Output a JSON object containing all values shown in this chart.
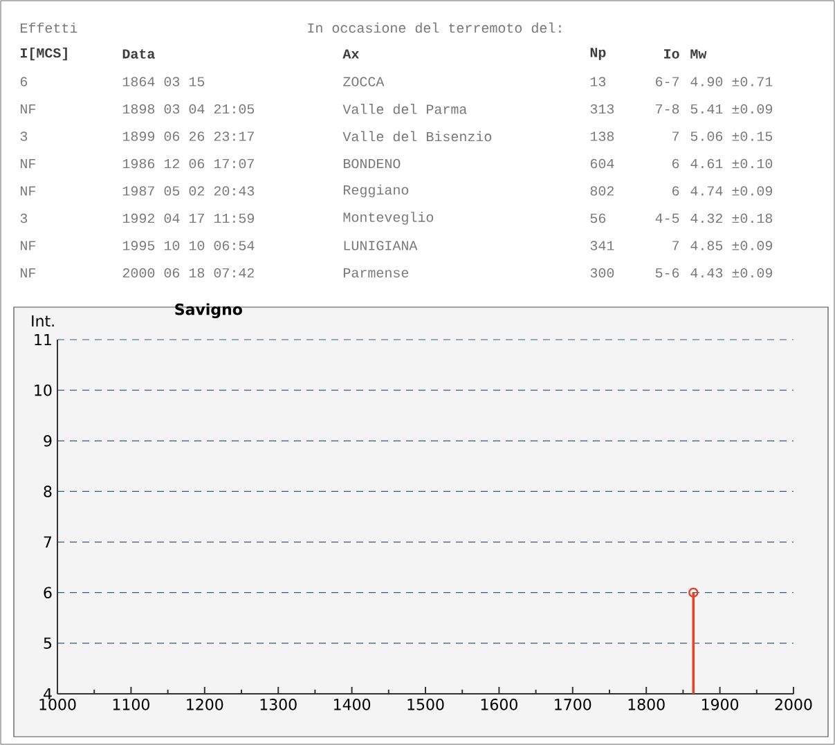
{
  "chart_data": [
    {
      "type": "other",
      "annotations": [
        "Effetti",
        "In occasione del terremoto del:",
        "I[MCS]",
        "Data",
        "Ax",
        "Np",
        "Io",
        "Mw",
        "6",
        "1864 03 15",
        "ZOCCA",
        "13",
        "6-7",
        "4.90 ±0.71",
        "NF",
        "1898 03 04 21:05",
        "Valle del Parma",
        "313",
        "7-8",
        "5.41 ±0.09",
        "3",
        "1899 06 26 23:17",
        "Valle del Bisenzio",
        "138",
        "7",
        "5.06 ±0.15",
        "NF",
        "1986 12 06 17:07",
        "BONDENO",
        "604",
        "6",
        "4.61 ±0.10",
        "NF",
        "1987 05 02 20:43",
        "Reggiano",
        "802",
        "6",
        "4.74 ±0.09",
        "3",
        "1992 04 17 11:59",
        "Monteveglio",
        "56",
        "4-5",
        "4.32 ±0.18",
        "NF",
        "1995 10 10 06:54",
        "LUNIGIANA",
        "341",
        "7",
        "4.85 ±0.09",
        "NF",
        "2000 06 18 07:42",
        "Parmense",
        "300",
        "5-6",
        "4.43 ±0.09"
      ]
    },
    {
      "type": "lollipop",
      "title": "Savigno",
      "ylabel": "Int.",
      "x": [
        1864
      ],
      "values": [
        6
      ],
      "color": "#e0452a",
      "xlim": [
        1000,
        2000
      ],
      "ylim": [
        4,
        11
      ],
      "xticks": [
        1000,
        1100,
        1200,
        1300,
        1400,
        1500,
        1600,
        1700,
        1800,
        1900,
        2000
      ],
      "yticks": [
        4,
        5,
        6,
        7,
        8,
        9,
        10,
        11
      ],
      "grid": "y",
      "marker": "circle"
    }
  ]
}
